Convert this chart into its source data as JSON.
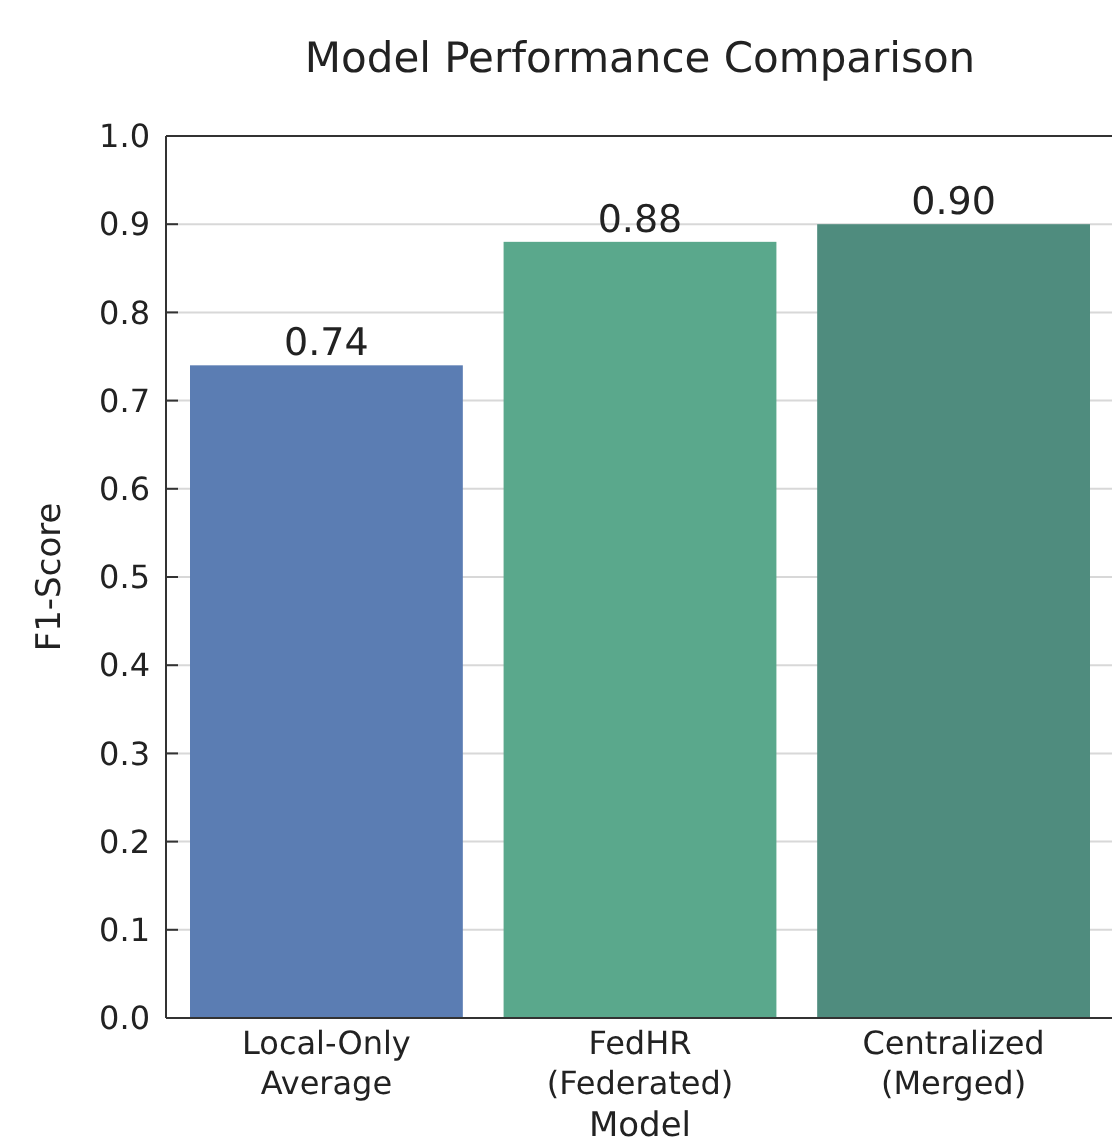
{
  "chart_data": {
    "type": "bar",
    "title": "Model Performance Comparison",
    "xlabel": "Model",
    "ylabel": "F1-Score",
    "categories": [
      "Local-Only\nAverage",
      "FedHR\n(Federated)",
      "Centralized\n(Merged)"
    ],
    "values": [
      0.74,
      0.88,
      0.9
    ],
    "colors": [
      "#5b7db3",
      "#5aa88c",
      "#4f8c7e"
    ],
    "value_labels": [
      "0.74",
      "0.88",
      "0.90"
    ],
    "ylim": [
      0,
      1.0
    ],
    "yticks": [
      {
        "value": 0,
        "label": "0.0"
      },
      0.1,
      0.2,
      0.3,
      0.4,
      0.5,
      0.6,
      0.7,
      0.8,
      0.9,
      {
        "value": 1,
        "label": "1.0"
      }
    ],
    "grid": "y"
  }
}
